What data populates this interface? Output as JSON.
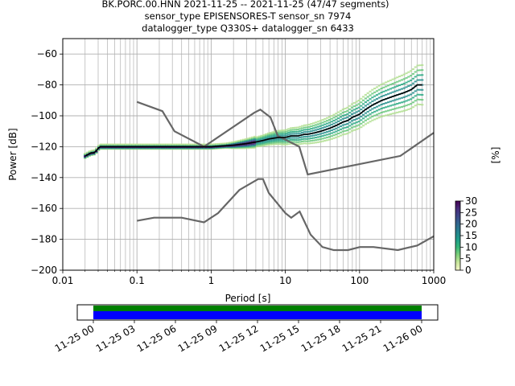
{
  "title_lines": [
    "BK.PORC.00.HNN   2021-11-25 -- 2021-11-25  (47/47 segments)",
    "sensor_type EPISENSORES-T sensor_sn 7974",
    "datalogger_type Q330S+ datalogger_sn 6433"
  ],
  "chart_data": {
    "type": "heatmap",
    "xlabel": "Period [s]",
    "ylabel": "Power [dB]",
    "xscale": "log",
    "xlim": [
      0.01,
      1000
    ],
    "ylim": [
      -200,
      -50
    ],
    "x_ticks": [
      0.01,
      0.1,
      1,
      10,
      100,
      1000
    ],
    "x_tick_labels": [
      "0.01",
      "0.1",
      "1",
      "10",
      "100",
      "1000"
    ],
    "y_ticks": [
      -60,
      -80,
      -100,
      -120,
      -140,
      -160,
      -180,
      -200
    ],
    "y_tick_labels": [
      "−60",
      "−80",
      "−100",
      "−120",
      "−140",
      "−160",
      "−180",
      "−200"
    ],
    "grid": true,
    "colorbar": {
      "label": "[%]",
      "ticks": [
        0,
        5,
        10,
        15,
        20,
        25,
        30
      ],
      "tick_labels": [
        "0",
        "5",
        "10",
        "15",
        "20",
        "25",
        "30"
      ],
      "range": [
        0,
        30
      ],
      "colors": [
        "#f5f5c8",
        "#c8e69b",
        "#7fcf7a",
        "#35b779",
        "#1f9e89",
        "#26828e",
        "#31688e",
        "#3e4989",
        "#472d7b",
        "#440154"
      ]
    },
    "mode_curve": {
      "color": "#000000",
      "x": [
        0.02,
        0.022,
        0.024,
        0.026,
        0.028,
        0.03,
        0.032,
        0.035,
        0.05,
        0.1,
        0.3,
        1,
        2,
        3,
        4,
        5,
        6,
        8,
        10,
        12,
        15,
        18,
        20,
        25,
        30,
        40,
        50,
        60,
        70,
        80,
        100,
        120,
        150,
        200,
        300,
        400,
        500,
        600,
        700
      ],
      "y": [
        -126,
        -125,
        -124,
        -124,
        -123,
        -121,
        -120,
        -120,
        -120,
        -120,
        -120,
        -120,
        -119,
        -118,
        -117,
        -116,
        -115,
        -114,
        -114,
        -113,
        -113,
        -112,
        -112,
        -111,
        -110,
        -108,
        -106,
        -104,
        -103,
        -101,
        -99,
        -96,
        -93,
        -90,
        -87,
        -85,
        -83,
        -80,
        -80
      ]
    },
    "noise_models": {
      "color": "#666666",
      "nhnm": {
        "x": [
          0.1,
          0.22,
          0.32,
          0.8,
          3.8,
          4.6,
          6.3,
          7.9,
          15.4,
          20,
          354.8,
          1000
        ],
        "y": [
          -91,
          -97,
          -110,
          -120,
          -98,
          -96,
          -101,
          -113,
          -120,
          -138,
          -126,
          -111
        ]
      },
      "nlnm": {
        "x": [
          0.1,
          0.17,
          0.4,
          0.8,
          1.24,
          2.4,
          4.3,
          5.0,
          6.0,
          10.0,
          12.0,
          15.6,
          21.9,
          31.6,
          45,
          70,
          101,
          154,
          328,
          600,
          1000
        ],
        "y": [
          -168,
          -166,
          -166,
          -169,
          -163,
          -148,
          -141,
          -141,
          -150,
          -163,
          -166,
          -162,
          -177,
          -185,
          -187,
          -187,
          -185,
          -185,
          -187,
          -184,
          -178
        ]
      }
    }
  },
  "timeline": {
    "tick_labels": [
      "11-25 00",
      "11-25 03",
      "11-25 06",
      "11-25 09",
      "11-25 12",
      "11-25 15",
      "11-25 18",
      "11-25 21",
      "11-26 00"
    ],
    "start_hour": 0,
    "end_hour": 24,
    "data_end_hour": 24,
    "coverage_color": "#008000",
    "segment_color": "#0000ff"
  }
}
